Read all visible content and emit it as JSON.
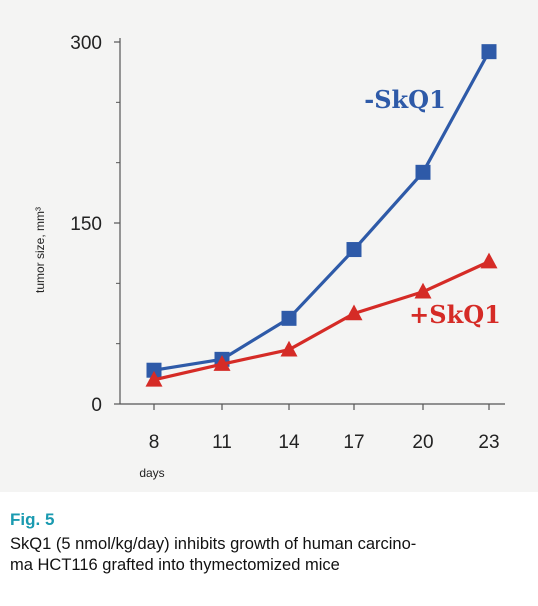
{
  "chart_data": {
    "type": "line",
    "xlabel": "days",
    "ylabel": "tumor size, mm³",
    "x": [
      8,
      11,
      14,
      17,
      20,
      23
    ],
    "x_tick_labels": [
      "8",
      "11",
      "14",
      "17",
      "20",
      "23"
    ],
    "y_tick_labels": [
      "0",
      "150",
      "300"
    ],
    "y_ticks": [
      0,
      150,
      300
    ],
    "y_minor_ticks": [
      50,
      100,
      200,
      250
    ],
    "ylim": [
      0,
      300
    ],
    "grid": false,
    "legend": "none",
    "series": [
      {
        "name": "-SkQ1",
        "marker": "square",
        "color": "#2e5aa8",
        "values": [
          28,
          37,
          71,
          128,
          192,
          292
        ]
      },
      {
        "name": "+SkQ1",
        "marker": "triangle",
        "color": "#d52b26",
        "values": [
          20,
          33,
          45,
          75,
          93,
          118
        ]
      }
    ]
  },
  "caption": {
    "figure_label": "Fig. 5",
    "text": "SkQ1 (5 nmol/kg/day) inhibits growth of human carcino-\nma HCT116 grafted into thymectomized mice"
  },
  "colors": {
    "panel_background": "#f4f4f3",
    "figure_label": "#1a9ab0",
    "axis": "#555555"
  }
}
